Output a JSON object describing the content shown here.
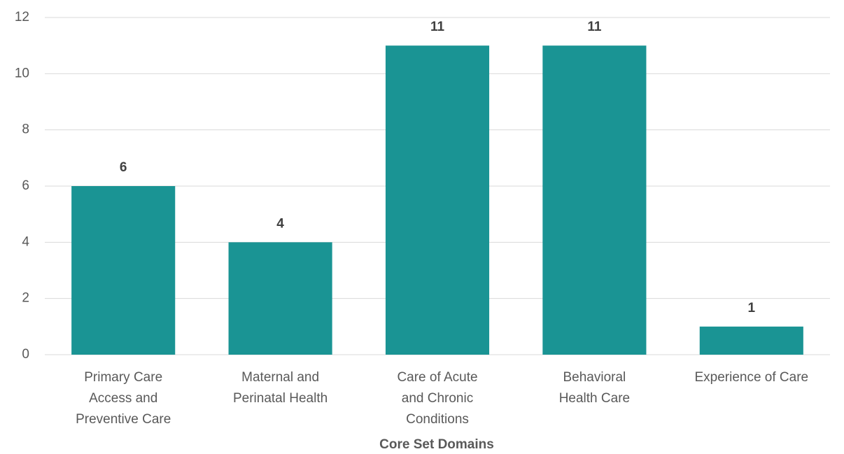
{
  "chart_data": {
    "type": "bar",
    "x_label": "Core Set Domains",
    "categories": [
      [
        "Primary Care",
        "Access and",
        "Preventive Care"
      ],
      [
        "Maternal and",
        "Perinatal Health"
      ],
      [
        "Care of Acute",
        "and Chronic",
        "Conditions"
      ],
      [
        "Behavioral",
        "Health Care"
      ],
      [
        "Experience of Care"
      ]
    ],
    "values": [
      6,
      4,
      11,
      11,
      1
    ],
    "color": "#1a9494",
    "ylim": [
      0,
      12
    ],
    "yticks": [
      0,
      2,
      4,
      6,
      8,
      10,
      12
    ],
    "grid": true
  }
}
